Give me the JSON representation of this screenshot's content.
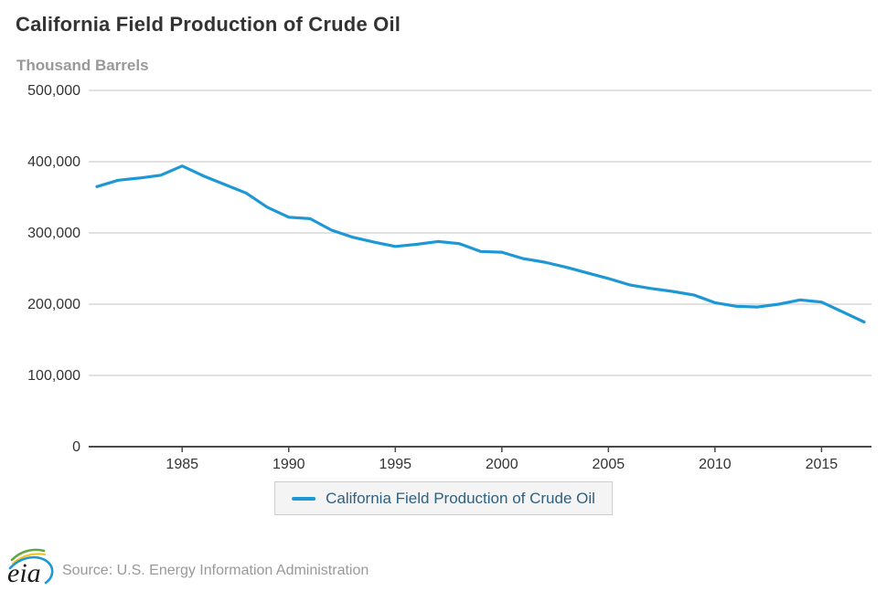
{
  "header": {
    "title": "California Field Production of Crude Oil",
    "units": "Thousand Barrels"
  },
  "legend": {
    "label": "California Field Production of Crude Oil"
  },
  "footer": {
    "logo_text": "eia",
    "source": "Source: U.S. Energy Information Administration"
  },
  "colors": {
    "line": "#1e98d5",
    "grid": "#d7d7d7",
    "axis": "#4a4a4a",
    "title_text": "#333333",
    "muted_text": "#999999",
    "legend_text": "#2f607f",
    "legend_bg": "#f4f4f4",
    "legend_border": "#cccccc",
    "logo_green": "#62a744",
    "logo_yellow": "#f3c117",
    "logo_blue": "#1e98d5"
  },
  "chart_data": {
    "type": "line",
    "title": "California Field Production of Crude Oil",
    "ylabel": "Thousand Barrels",
    "xlabel": "",
    "x": [
      1981,
      1982,
      1983,
      1984,
      1985,
      1986,
      1987,
      1988,
      1989,
      1990,
      1991,
      1992,
      1993,
      1994,
      1995,
      1996,
      1997,
      1998,
      1999,
      2000,
      2001,
      2002,
      2003,
      2004,
      2005,
      2006,
      2007,
      2008,
      2009,
      2010,
      2011,
      2012,
      2013,
      2014,
      2015,
      2016,
      2017
    ],
    "values": [
      365000,
      374000,
      377000,
      381000,
      394000,
      380000,
      368000,
      356000,
      336000,
      322000,
      320000,
      304000,
      294000,
      287000,
      281000,
      284000,
      288000,
      285000,
      274000,
      273000,
      264000,
      259000,
      252000,
      244000,
      236000,
      227000,
      222000,
      218000,
      213000,
      202000,
      197000,
      196000,
      200000,
      206000,
      203000,
      189000,
      175000
    ],
    "ylim": [
      0,
      500000
    ],
    "ytick_step": 100000,
    "xticks": [
      1985,
      1990,
      1995,
      2000,
      2005,
      2010,
      2015
    ],
    "grid": true,
    "legend_entries": [
      "California Field Production of Crude Oil"
    ],
    "legend_position": "bottom"
  }
}
